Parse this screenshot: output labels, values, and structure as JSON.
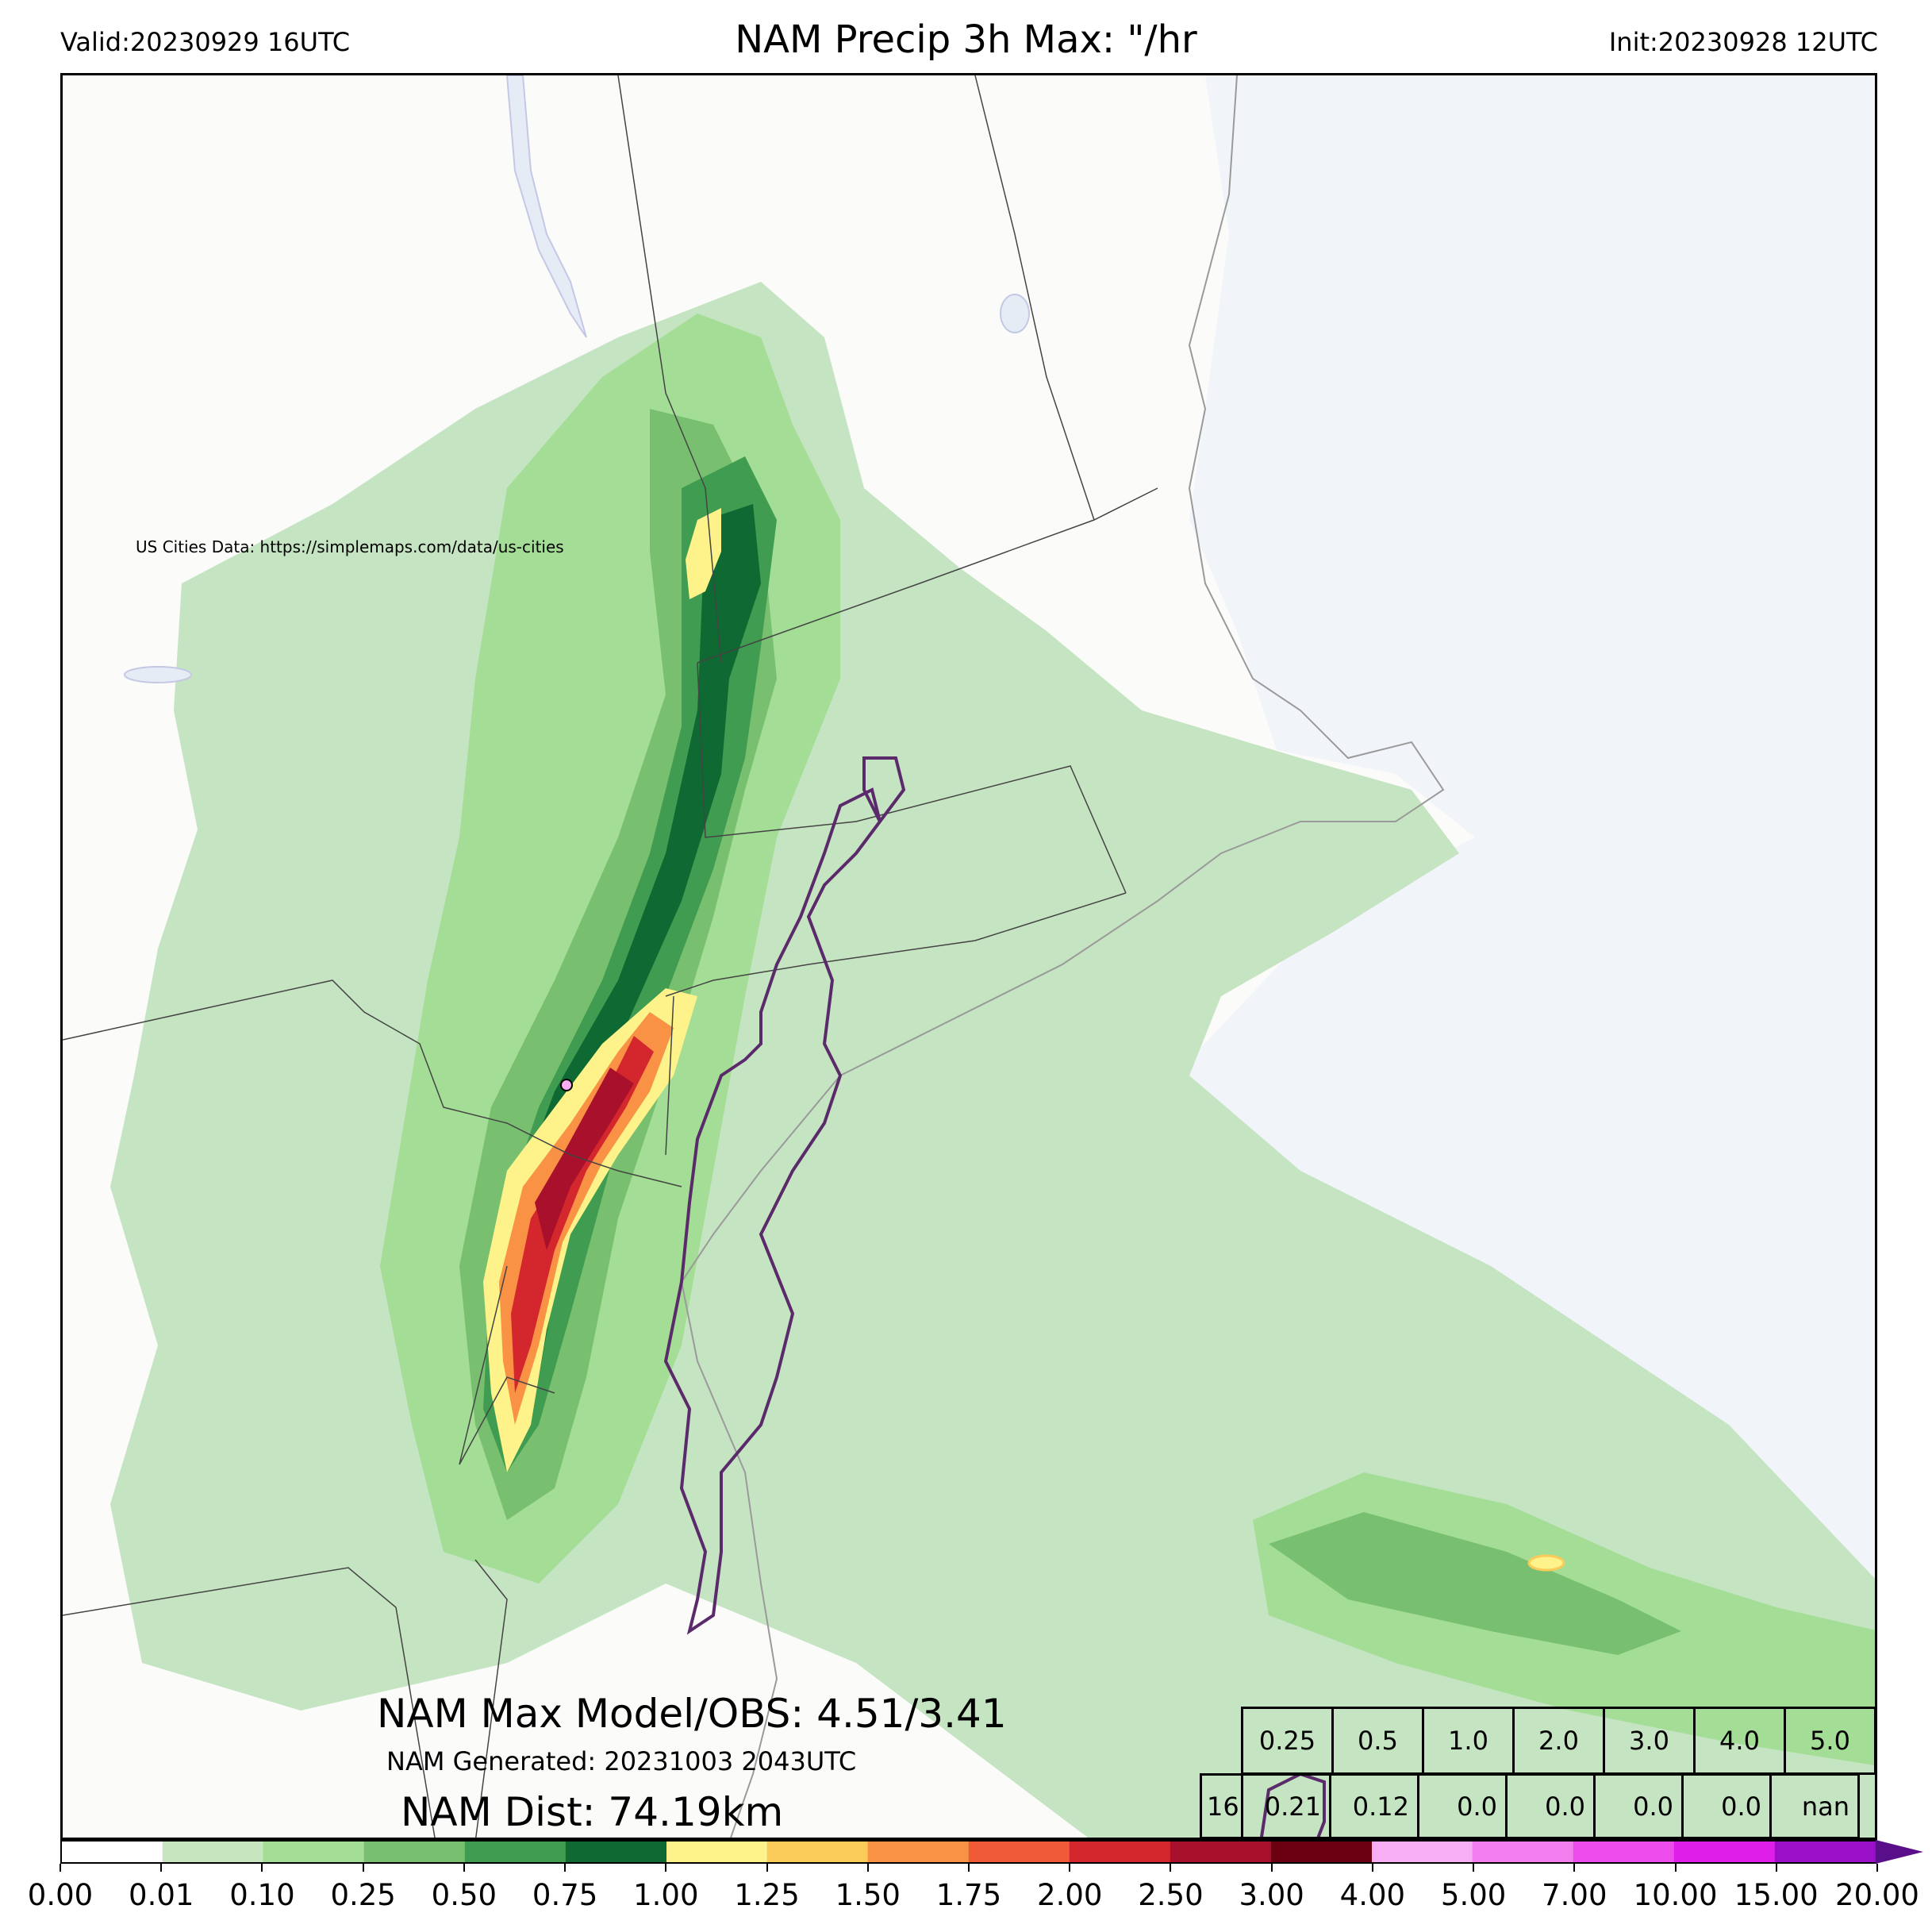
{
  "header": {
    "valid": "Valid:20230929 16UTC",
    "title": "NAM Precip 3h Max: \"/hr",
    "init": "Init:20230928 12UTC"
  },
  "map": {
    "credit": "US Cities Data: https://simplemaps.com/data/us-cities",
    "colors": {
      "background_land": "#fbfbfa",
      "ocean": "#f1f4f9",
      "contour_obs": "#5b2a6b",
      "borders": "#444444"
    }
  },
  "stats": {
    "max_line": "NAM Max Model/OBS: 4.51/3.41",
    "generated": "NAM Generated: 20231003 2043UTC",
    "dist": "NAM Dist: 74.19km"
  },
  "threshold_table": {
    "thresholds": [
      "0.25",
      "0.5",
      "1.0",
      "2.0",
      "3.0",
      "4.0",
      "5.0"
    ],
    "lead": "16",
    "values": [
      "0.21",
      "0.12",
      "0.0",
      "0.0",
      "0.0",
      "0.0",
      "nan"
    ]
  },
  "colorbar": {
    "labels": [
      "0.00",
      "0.01",
      "0.10",
      "0.25",
      "0.50",
      "0.75",
      "1.00",
      "1.25",
      "1.50",
      "1.75",
      "2.00",
      "2.50",
      "3.00",
      "4.00",
      "5.00",
      "7.00",
      "10.00",
      "15.00",
      "20.00"
    ],
    "colors": [
      "#ffffff",
      "#c7e6c0",
      "#a3dd96",
      "#79bf70",
      "#3f9c50",
      "#0e6a32",
      "#fdf38a",
      "#fbcb5a",
      "#f99245",
      "#f05a37",
      "#d4272d",
      "#a8102b",
      "#6a0012",
      "#f7aef2",
      "#f37ef0",
      "#ee4ded",
      "#e01ee9",
      "#9b0fc8"
    ],
    "extend_color": "#5a0f8a"
  }
}
